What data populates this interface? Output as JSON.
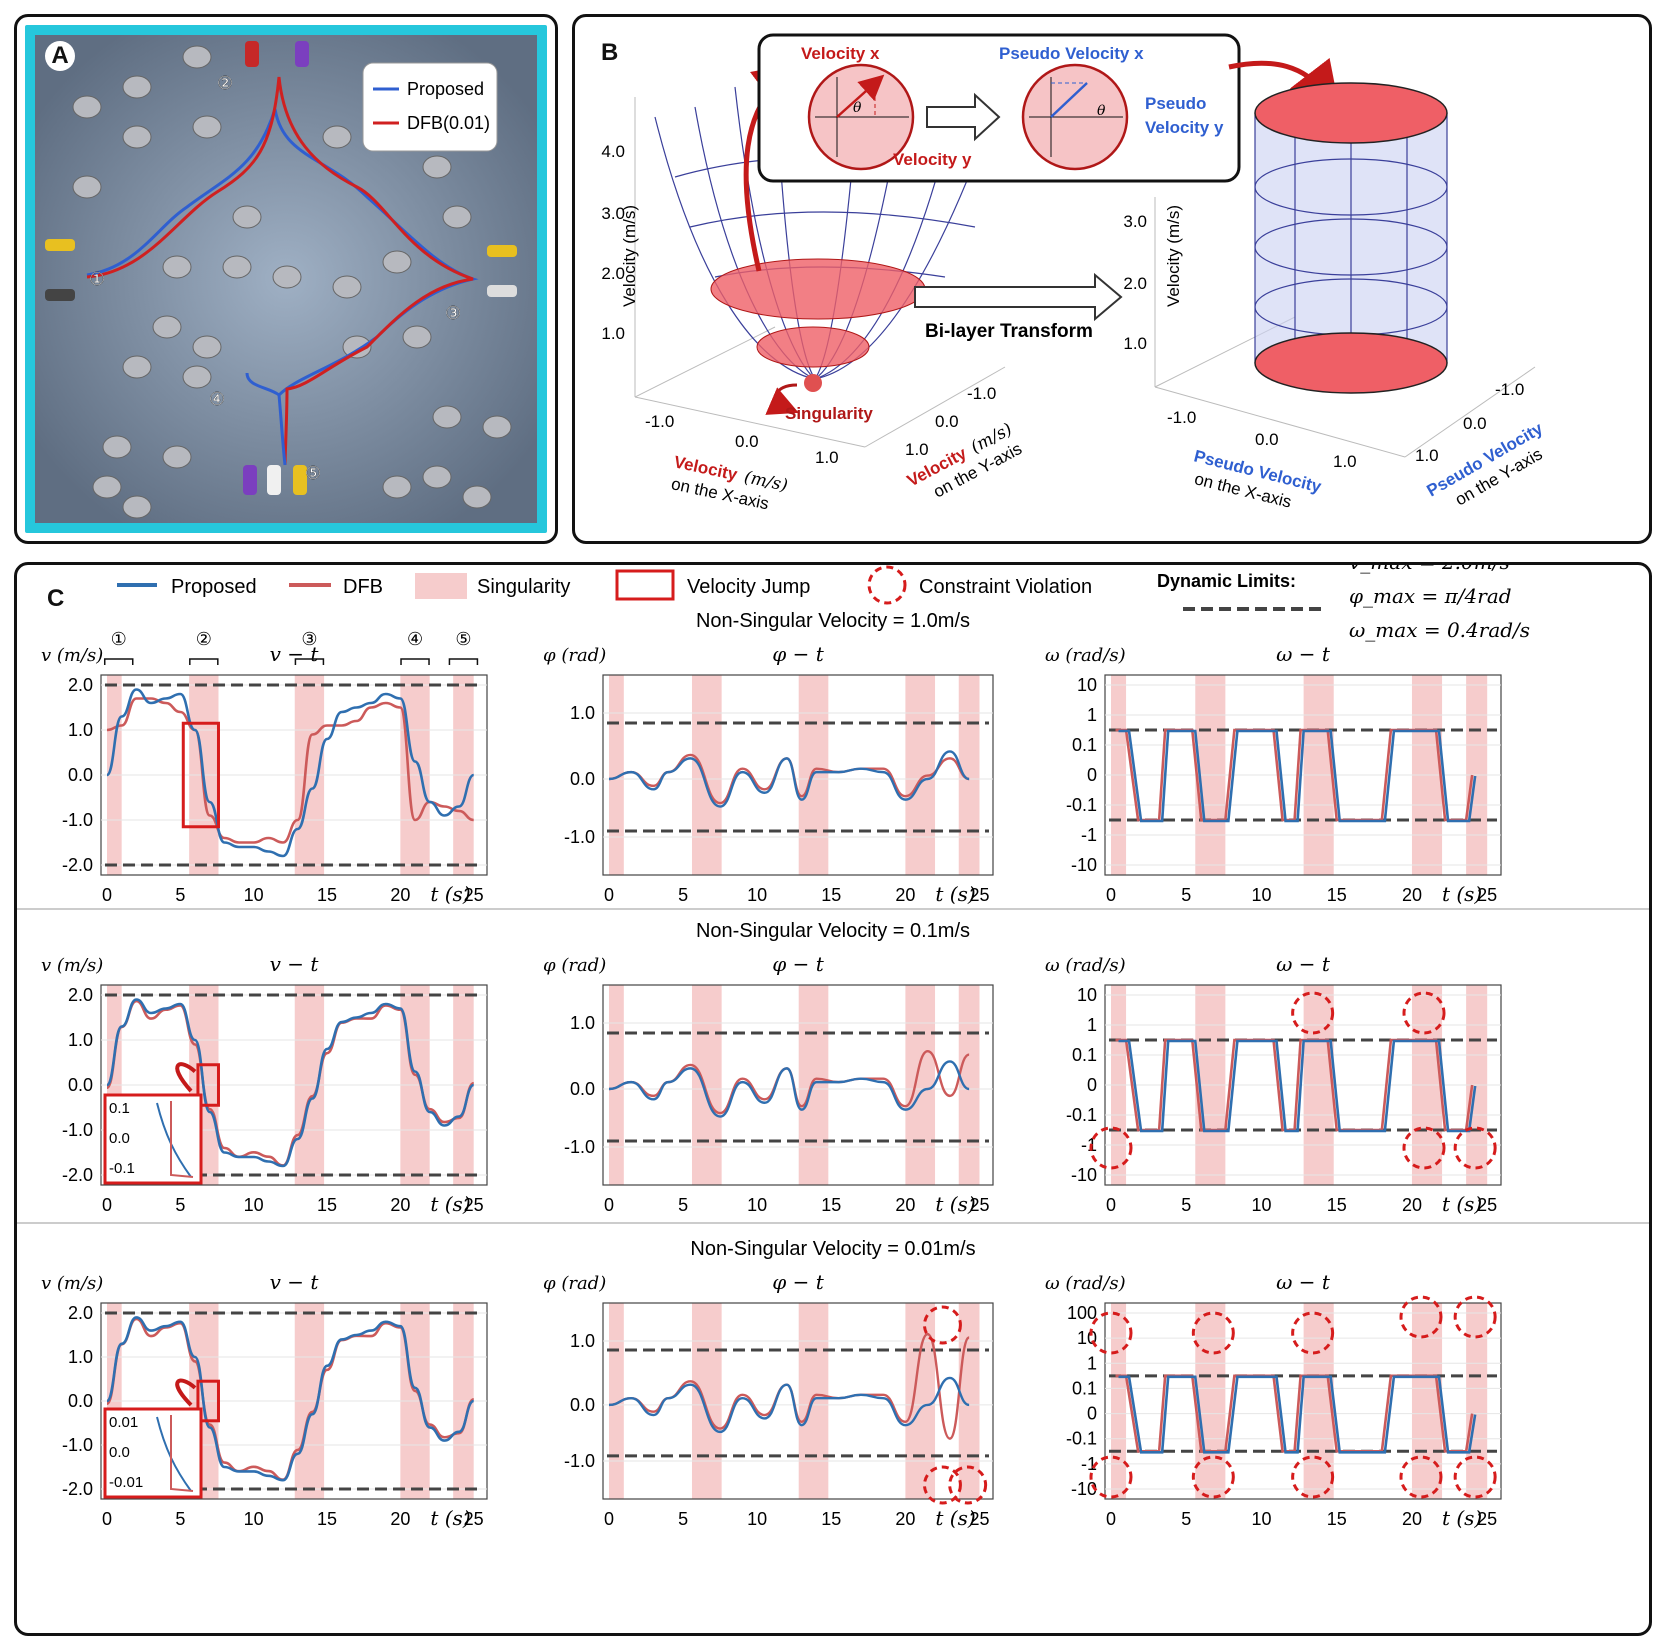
{
  "panelA": {
    "label": "A",
    "legend": [
      {
        "name": "Proposed",
        "color": "#2f5fd0"
      },
      {
        "name": "DFB(0.01)",
        "color": "#d02020"
      }
    ],
    "markers": [
      "①",
      "②",
      "③",
      "④",
      "⑤"
    ]
  },
  "panelB": {
    "label": "B",
    "inset": {
      "vx": "Velocity x",
      "vy": "Velocity y",
      "pvx": "Pseudo Velocity x",
      "pvy1": "Pseudo",
      "pvy2": "Velocity y",
      "theta": "θ"
    },
    "transform_label": "Bi-layer Transform",
    "singularity": "Singularity",
    "left_plot": {
      "zlabel": "Velocity (m/s)",
      "zticks": [
        "4.0",
        "3.0",
        "2.0",
        "1.0"
      ],
      "xticks": [
        "-1.0",
        "0.0",
        "1.0"
      ],
      "yticks": [
        "-1.0",
        "0.0",
        "1.0"
      ],
      "xlabel_word": "Velocity",
      "xlabel_unit": "(m/s)",
      "xlabel_line2": "on the X-axis",
      "ylabel_word": "Velocity",
      "ylabel_unit": "(m/s)",
      "ylabel_line2": "on the Y-axis"
    },
    "right_plot": {
      "zlabel": "Velocity (m/s)",
      "zticks": [
        "3.0",
        "2.0",
        "1.0"
      ],
      "xticks": [
        "-1.0",
        "0.0",
        "1.0"
      ],
      "yticks": [
        "-1.0",
        "0.0",
        "1.0"
      ],
      "xlabel_line1": "Pseudo Velocity",
      "xlabel_line2": "on the X-axis",
      "ylabel_line1": "Pseudo Velocity",
      "ylabel_line2": "on the Y-axis"
    }
  },
  "panelC": {
    "label": "C",
    "legend": {
      "proposed": "Proposed",
      "dfb": "DFB",
      "singularity": "Singularity",
      "jump": "Velocity Jump",
      "violation": "Constraint Violation",
      "limits": "Dynamic Limits:"
    },
    "limits": {
      "v": "v_max = 2.0m/s",
      "phi": "φ_max = π/4rad",
      "omega": "ω_max = 0.4rad/s"
    },
    "rows": [
      {
        "title": "Non-Singular Velocity = 1.0m/s"
      },
      {
        "title": "Non-Singular Velocity = 0.1m/s"
      },
      {
        "title": "Non-Singular Velocity = 0.01m/s"
      }
    ],
    "subplot_titles": {
      "v": "v − t",
      "phi": "φ − t",
      "omega": "ω − t"
    },
    "ylabels": {
      "v": "v (m/s)",
      "phi": "φ (rad)",
      "omega": "ω (rad/s)"
    },
    "xlabel": "t (s)",
    "xticks": [
      "0",
      "5",
      "10",
      "15",
      "20",
      "25"
    ],
    "v_ticks": [
      "2.0",
      "1.0",
      "0.0",
      "-1.0",
      "-2.0"
    ],
    "phi_ticks": [
      "1.0",
      "0.0",
      "-1.0"
    ],
    "omega_ticks_row1": [
      "10",
      "1",
      "0.1",
      "0",
      "-0.1",
      "-1",
      "-10"
    ],
    "omega_ticks_row3": [
      "100",
      "10",
      "1",
      "0.1",
      "0",
      "-0.1",
      "-1",
      "-10"
    ],
    "stage_markers": [
      "①",
      "②",
      "③",
      "④",
      "⑤"
    ],
    "inset2_ticks": [
      "0.1",
      "0.0",
      "-0.1"
    ],
    "inset3_ticks": [
      "0.01",
      "0.0",
      "-0.01"
    ]
  },
  "chart_data": [
    {
      "type": "line",
      "panel": "C row 1 v-t",
      "x_range": [
        0,
        25
      ],
      "ylim": [
        -2.0,
        2.0
      ],
      "series": [
        {
          "name": "Proposed",
          "x": [
            0,
            1,
            2,
            3,
            4,
            5,
            6,
            7,
            8,
            9,
            10,
            11,
            12,
            13,
            14,
            15,
            16,
            17,
            18,
            19,
            20,
            21,
            22,
            23,
            24,
            25
          ],
          "values": [
            0,
            1.3,
            1.9,
            1.6,
            1.7,
            1.8,
            1.0,
            -0.6,
            -1.5,
            -1.6,
            -1.6,
            -1.7,
            -1.8,
            -1.2,
            -0.3,
            0.8,
            1.4,
            1.5,
            1.6,
            1.8,
            1.7,
            0.3,
            -0.6,
            -0.9,
            -0.7,
            0
          ]
        },
        {
          "name": "DFB",
          "x": [
            0,
            1,
            2,
            3,
            4,
            5,
            6,
            7,
            8,
            9,
            10,
            11,
            12,
            13,
            14,
            15,
            16,
            17,
            18,
            19,
            20,
            21,
            22,
            23,
            24,
            25
          ],
          "values": [
            1.0,
            1.1,
            1.7,
            1.7,
            1.6,
            1.4,
            1.0,
            -0.9,
            -1.4,
            -1.5,
            -1.5,
            -1.4,
            -1.5,
            -1.0,
            0.9,
            1.1,
            1.1,
            1.2,
            1.5,
            1.6,
            1.5,
            -1.0,
            -0.6,
            -0.7,
            -0.8,
            -1.0
          ]
        }
      ],
      "limits": [
        2.0,
        -2.0
      ]
    },
    {
      "type": "line",
      "panel": "C row 1 phi-t",
      "ylim": [
        -1.2,
        1.5
      ],
      "series": [
        {
          "name": "Proposed",
          "x": [
            0,
            1.5,
            3,
            4,
            5.5,
            7.5,
            9,
            10.5,
            12,
            13,
            14,
            15.5,
            17,
            18.5,
            20,
            21.5,
            23,
            24.3
          ],
          "values": [
            0,
            0.1,
            -0.15,
            0.1,
            0.3,
            -0.4,
            0.1,
            -0.2,
            0.3,
            -0.3,
            0.1,
            0.1,
            0.15,
            0.1,
            -0.3,
            0.0,
            0.4,
            0.0
          ]
        },
        {
          "name": "DFB",
          "x": [
            0,
            1.5,
            3,
            4,
            5.5,
            7.5,
            9,
            10.5,
            12,
            13,
            14,
            15.5,
            17,
            18.5,
            20,
            21.5,
            23,
            24.3
          ],
          "values": [
            0,
            0.1,
            -0.1,
            0.1,
            0.35,
            -0.35,
            0.15,
            -0.15,
            0.3,
            -0.25,
            0.15,
            0.1,
            0.15,
            0.15,
            -0.25,
            0.05,
            0.3,
            0.0
          ]
        }
      ],
      "limits": [
        0.785,
        -0.785
      ]
    },
    {
      "type": "line",
      "panel": "C row 1 omega-t",
      "series": [
        {
          "name": "Proposed",
          "values": [
            0.4,
            -0.4,
            0.4,
            -0.4,
            0.4,
            -0.4,
            0.4,
            -0.4,
            0.4
          ]
        },
        {
          "name": "DFB",
          "values": [
            0.4,
            -0.4,
            0.4,
            -0.4,
            0.4,
            -0.4,
            0.4,
            -0.4,
            0.4
          ]
        }
      ],
      "limits": [
        0.4,
        -0.4
      ]
    }
  ]
}
